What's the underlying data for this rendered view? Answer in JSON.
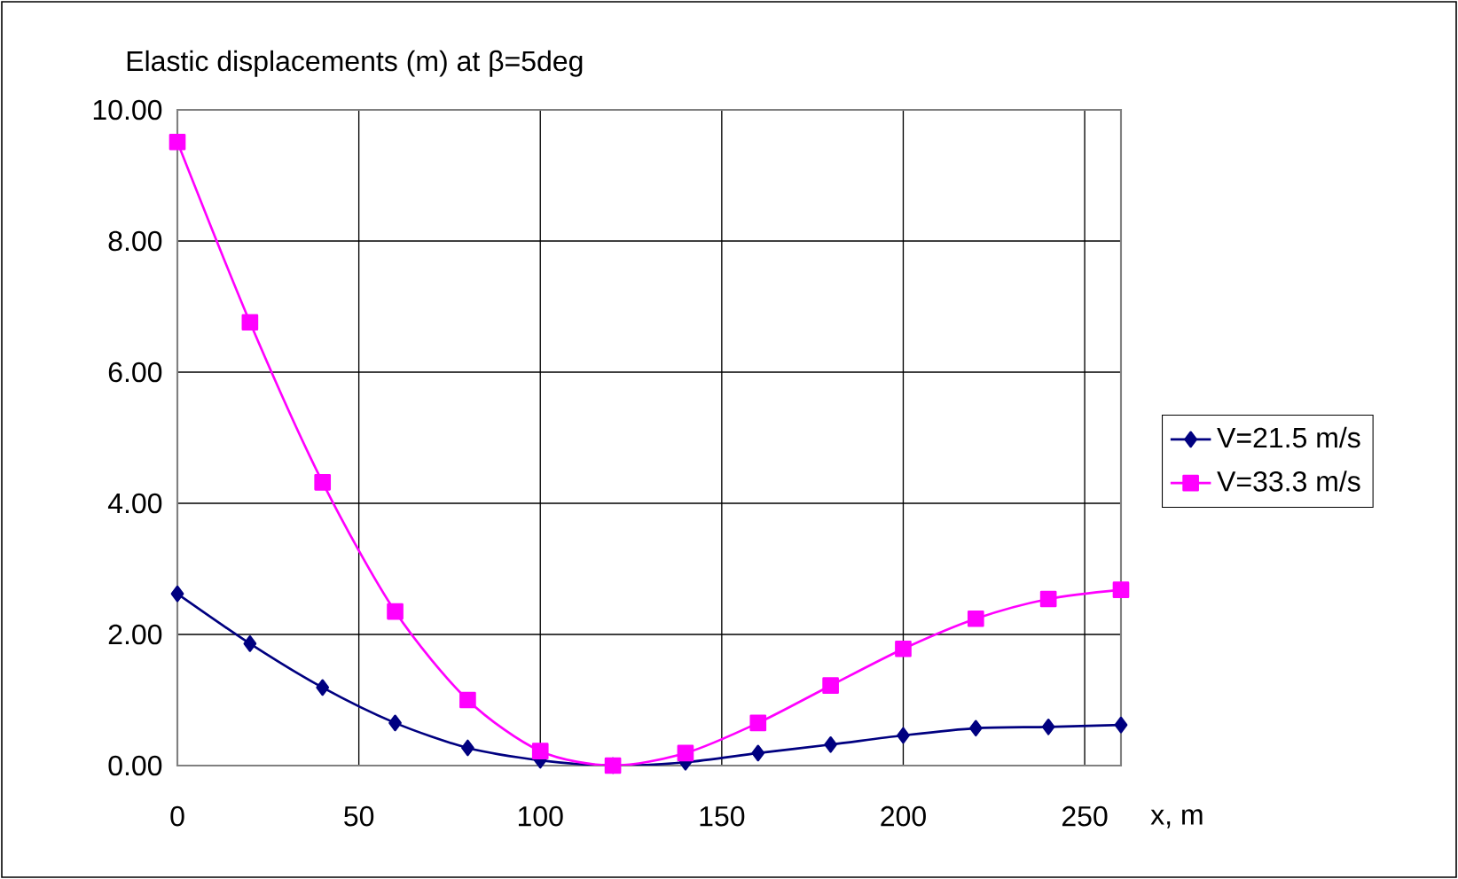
{
  "chart_data": {
    "type": "line",
    "title": "Elastic displacements (m) at β=5deg",
    "xlabel": "x, m",
    "x": [
      0,
      20,
      40,
      60,
      80,
      100,
      120,
      140,
      160,
      180,
      200,
      220,
      240,
      260
    ],
    "series": [
      {
        "name": "V=21.5 m/s",
        "color": "#000080",
        "marker": "diamond",
        "values": [
          2.62,
          1.86,
          1.19,
          0.65,
          0.27,
          0.08,
          0,
          0.05,
          0.19,
          0.32,
          0.46,
          0.57,
          0.59,
          0.62
        ]
      },
      {
        "name": "V=33.3 m/s",
        "color": "#ff00ff",
        "marker": "square",
        "values": [
          9.51,
          6.76,
          4.32,
          2.35,
          1.0,
          0.22,
          0,
          0.19,
          0.65,
          1.22,
          1.78,
          2.24,
          2.54,
          2.68
        ]
      }
    ],
    "xlim": [
      0,
      260
    ],
    "xticks": [
      0,
      50,
      100,
      150,
      200,
      250
    ],
    "ylim": [
      0,
      10
    ],
    "yticks": [
      {
        "value": 0,
        "label": "0.00"
      },
      {
        "value": 2,
        "label": "2.00"
      },
      {
        "value": 4,
        "label": "4.00"
      },
      {
        "value": 6,
        "label": "6.00"
      },
      {
        "value": 8,
        "label": "8.00"
      },
      {
        "value": 10,
        "label": "10.00"
      }
    ],
    "grid": true,
    "legend": "right",
    "line_style": "solid"
  }
}
